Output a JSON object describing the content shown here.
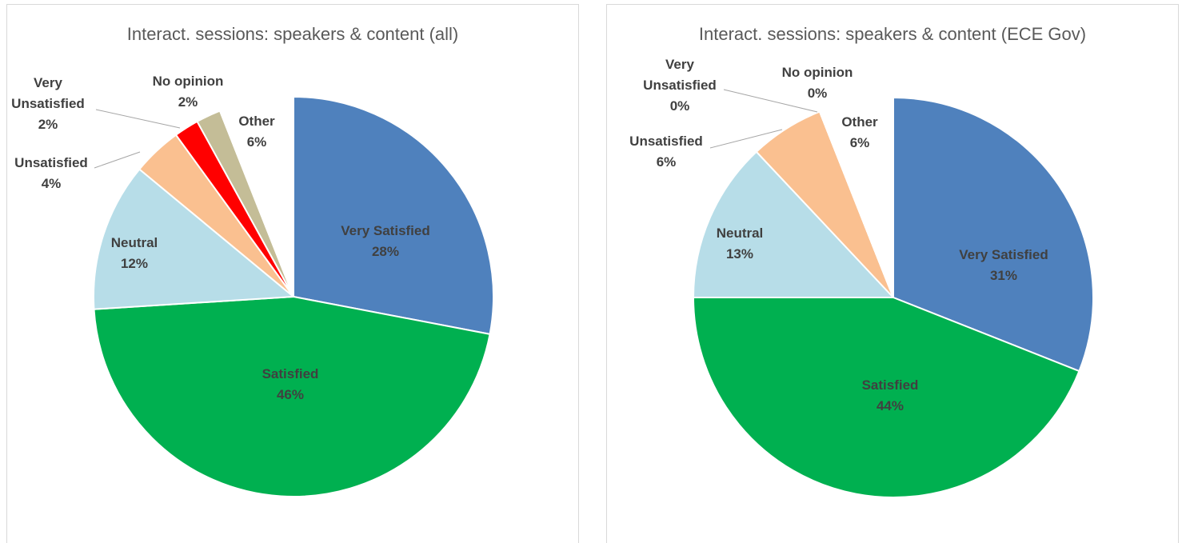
{
  "chart_data": [
    {
      "type": "pie",
      "title": "Interact. sessions: speakers & content (all)",
      "categories": [
        "Very Satisfied",
        "Satisfied",
        "Neutral",
        "Unsatisfied",
        "Very Unsatisfied",
        "No opinion",
        "Other"
      ],
      "values": [
        28,
        46,
        12,
        4,
        2,
        2,
        6
      ],
      "value_labels": [
        "28%",
        "46%",
        "12%",
        "4%",
        "2%",
        "2%",
        "6%"
      ],
      "colors": [
        "#4f81bd",
        "#00b050",
        "#b7dde8",
        "#fac090",
        "#ff0000",
        "#c4bd97",
        "#ffffff"
      ]
    },
    {
      "type": "pie",
      "title": "Interact. sessions: speakers & content (ECE Gov)",
      "categories": [
        "Very Satisfied",
        "Satisfied",
        "Neutral",
        "Unsatisfied",
        "Very Unsatisfied",
        "No opinion",
        "Other"
      ],
      "values": [
        31,
        44,
        13,
        6,
        0,
        0,
        6
      ],
      "value_labels": [
        "31%",
        "44%",
        "13%",
        "6%",
        "0%",
        "0%",
        "6%"
      ],
      "colors": [
        "#4f81bd",
        "#00b050",
        "#b7dde8",
        "#fac090",
        "#ff0000",
        "#c4bd97",
        "#ffffff"
      ]
    }
  ]
}
